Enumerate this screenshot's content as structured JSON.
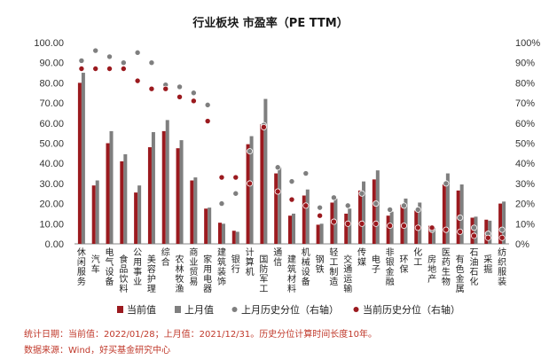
{
  "chart_data": {
    "type": "bar",
    "title": "行业板块 市盈率（PE TTM）",
    "categories": [
      "休闲服务",
      "汽车",
      "电气设备",
      "食品饮料",
      "公用事业",
      "美容护理",
      "综合",
      "农林牧渔",
      "商业贸易",
      "家用电器",
      "建筑装饰",
      "银行",
      "计算机",
      "国防军工",
      "通信",
      "建筑材料",
      "机械设备",
      "钢铁",
      "轻工制造",
      "交通运输",
      "传媒",
      "电子",
      "非银金融",
      "环保",
      "化工",
      "房地产",
      "医药生物",
      "有色金属",
      "石油石化",
      "采掘",
      "纺织服装"
    ],
    "series": [
      {
        "name": "当前值",
        "axis": "left",
        "kind": "bar",
        "color": "#9b1a1f",
        "values": [
          80,
          29,
          50,
          41,
          25.5,
          48,
          56,
          47.5,
          31.5,
          17.5,
          10.5,
          6.5,
          49.5,
          59.5,
          35,
          14,
          24,
          9.5,
          20.5,
          15,
          26.5,
          32,
          14,
          19.5,
          16.5,
          9,
          29.5,
          26.5,
          13,
          12,
          20
        ]
      },
      {
        "name": "上月值",
        "axis": "left",
        "kind": "bar",
        "color": "#7f7f7f",
        "values": [
          85,
          31.5,
          56,
          44.5,
          29,
          55.5,
          61.5,
          51.5,
          33,
          18,
          10,
          6,
          53.5,
          72,
          38,
          15,
          27,
          10,
          22.5,
          17.5,
          31,
          36.5,
          16,
          22.5,
          20.5,
          8,
          35,
          29.5,
          13.5,
          11.5,
          21
        ]
      },
      {
        "name": "上月历史分位（右轴）",
        "axis": "right",
        "kind": "dot",
        "color": "#7f7f7f",
        "values": [
          91,
          96,
          93,
          90,
          95,
          90,
          79,
          78,
          75,
          69,
          20,
          25,
          46,
          59,
          38,
          31,
          35,
          18,
          23,
          19,
          25,
          20,
          17,
          19,
          17,
          7,
          30,
          13,
          8,
          5,
          7
        ]
      },
      {
        "name": "当前历史分位（右轴）",
        "axis": "right",
        "kind": "dot",
        "color": "#9b1a1f",
        "values": [
          87,
          87,
          87,
          87,
          81,
          77,
          77,
          73,
          71,
          61,
          33,
          33,
          30,
          58,
          26,
          22,
          19,
          14,
          11,
          10,
          10,
          10,
          9,
          9,
          8,
          8,
          7,
          6,
          4,
          3,
          3
        ]
      }
    ],
    "ylim": [
      0,
      100
    ],
    "y2lim": [
      0,
      100
    ],
    "yticks": [
      "0.00",
      "10.00",
      "20.00",
      "30.00",
      "40.00",
      "50.00",
      "60.00",
      "70.00",
      "80.00",
      "90.00",
      "100.00"
    ],
    "y2ticks": [
      "0%",
      "10%",
      "20%",
      "30%",
      "40%",
      "50%",
      "60%",
      "70%",
      "80%",
      "90%",
      "100%"
    ],
    "grid": false,
    "legend": "bottom"
  },
  "notes": {
    "stats": "统计日期：当前值：2022/01/28；上月值：2021/12/31。历史分位计算时间长度10年。",
    "source": "数据来源：Wind，好买基金研究中心"
  }
}
